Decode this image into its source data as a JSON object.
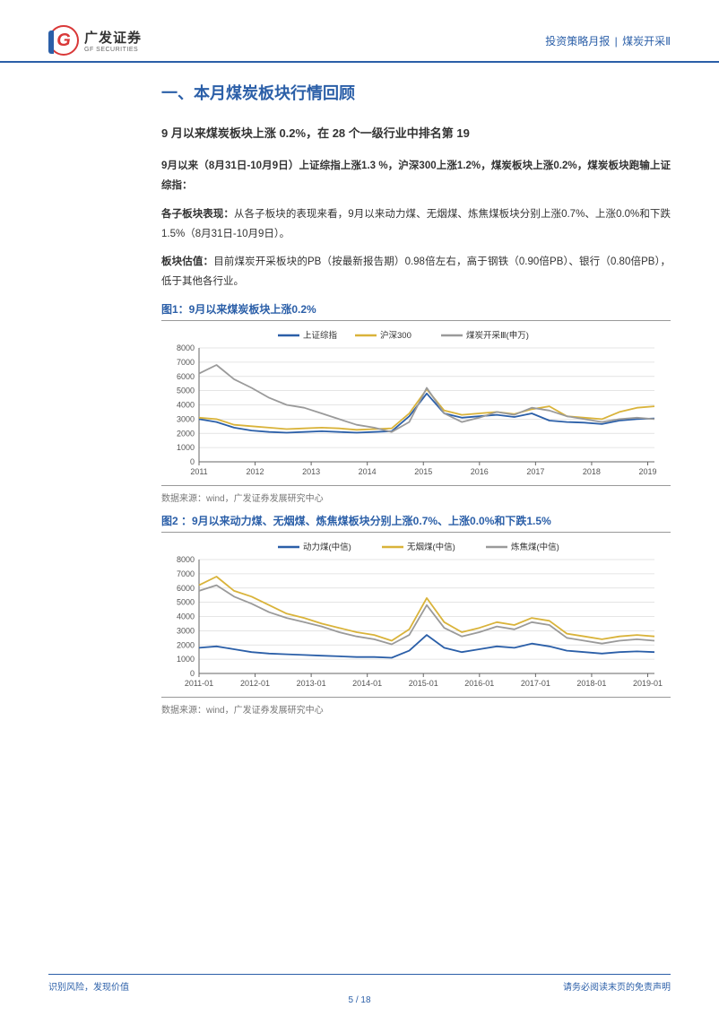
{
  "header": {
    "logo_cn": "广发证券",
    "logo_en": "GF SECURITIES",
    "right_a": "投资策略月报",
    "right_b": "煤炭开采Ⅱ"
  },
  "section_title": "一、本月煤炭板块行情回顾",
  "subsection_title": "9 月以来煤炭板块上涨 0.2%，在 28 个一级行业中排名第 19",
  "para1_bold": "9月以来（8月31日-10月9日）上证综指上涨1.3 %，沪深300上涨1.2%，煤炭板块上涨0.2%，煤炭板块跑输上证综指：",
  "para2_label": "各子板块表现：",
  "para2_text": "从各子板块的表现来看，9月以来动力煤、无烟煤、炼焦煤板块分别上涨0.7%、上涨0.0%和下跌1.5%（8月31日-10月9日）。",
  "para3_label": "板块估值：",
  "para3_text": "目前煤炭开采板块的PB（按最新报告期）0.98倍左右，高于钢铁（0.90倍PB）、银行（0.80倍PB），低于其他各行业。",
  "fig1": {
    "title": "图1：9月以来煤炭板块上涨0.2%",
    "type": "line",
    "legend": [
      "上证综指",
      "沪深300",
      "煤炭开采Ⅲ(申万)"
    ],
    "colors": [
      "#2b5fa8",
      "#d9b33a",
      "#9a9a9a"
    ],
    "x_labels": [
      "2011",
      "2012",
      "2013",
      "2014",
      "2015",
      "2016",
      "2017",
      "2018",
      "2019"
    ],
    "ylim": [
      0,
      8000
    ],
    "ytick_step": 1000,
    "grid_color": "#dcdcdc",
    "axis_color": "#666666",
    "label_fontsize": 9,
    "background": "#ffffff",
    "series": {
      "shangzheng": [
        3000,
        2800,
        2400,
        2200,
        2100,
        2050,
        2100,
        2150,
        2100,
        2050,
        2100,
        2150,
        3200,
        4800,
        3400,
        3100,
        3200,
        3300,
        3150,
        3400,
        2900,
        2800,
        2750,
        2650,
        2900,
        3000,
        3050
      ],
      "hs300": [
        3100,
        3000,
        2600,
        2500,
        2400,
        2300,
        2350,
        2400,
        2350,
        2250,
        2300,
        2350,
        3400,
        5100,
        3600,
        3300,
        3400,
        3500,
        3350,
        3700,
        3900,
        3200,
        3100,
        3000,
        3500,
        3800,
        3900
      ],
      "coal": [
        6200,
        6800,
        5800,
        5200,
        4500,
        4000,
        3800,
        3400,
        3000,
        2600,
        2400,
        2100,
        2800,
        5200,
        3400,
        2800,
        3100,
        3500,
        3300,
        3800,
        3600,
        3200,
        3000,
        2800,
        3000,
        3100,
        3000
      ]
    },
    "source": "数据来源：wind，广发证券发展研究中心"
  },
  "fig2": {
    "title": "图2 ：9月以来动力煤、无烟煤、炼焦煤板块分别上涨0.7%、上涨0.0%和下跌1.5%",
    "type": "line",
    "legend": [
      "动力煤(中信)",
      "无烟煤(中信)",
      "炼焦煤(中信)"
    ],
    "colors": [
      "#2b5fa8",
      "#d9b33a",
      "#9a9a9a"
    ],
    "x_labels": [
      "2011-01",
      "2012-01",
      "2013-01",
      "2014-01",
      "2015-01",
      "2016-01",
      "2017-01",
      "2018-01",
      "2019-01"
    ],
    "ylim": [
      0,
      8000
    ],
    "ytick_step": 1000,
    "grid_color": "#dcdcdc",
    "axis_color": "#666666",
    "label_fontsize": 9,
    "background": "#ffffff",
    "series": {
      "dongli": [
        1800,
        1900,
        1700,
        1500,
        1400,
        1350,
        1300,
        1250,
        1200,
        1150,
        1150,
        1100,
        1600,
        2700,
        1800,
        1500,
        1700,
        1900,
        1800,
        2100,
        1900,
        1600,
        1500,
        1400,
        1500,
        1550,
        1500
      ],
      "wuyan": [
        6200,
        6800,
        5800,
        5400,
        4800,
        4200,
        3900,
        3500,
        3200,
        2900,
        2700,
        2300,
        3100,
        5300,
        3600,
        2900,
        3200,
        3600,
        3400,
        3900,
        3700,
        2800,
        2600,
        2400,
        2600,
        2700,
        2600
      ],
      "lianjiao": [
        5800,
        6200,
        5400,
        4900,
        4300,
        3900,
        3600,
        3300,
        2900,
        2600,
        2400,
        2050,
        2700,
        4800,
        3200,
        2600,
        2900,
        3300,
        3100,
        3600,
        3400,
        2500,
        2300,
        2100,
        2300,
        2400,
        2300
      ]
    },
    "source": "数据来源：wind，广发证券发展研究中心"
  },
  "footer": {
    "left": "识别风险，发现价值",
    "right": "请务必阅读末页的免责声明",
    "page_current": "5",
    "page_total": "18"
  }
}
